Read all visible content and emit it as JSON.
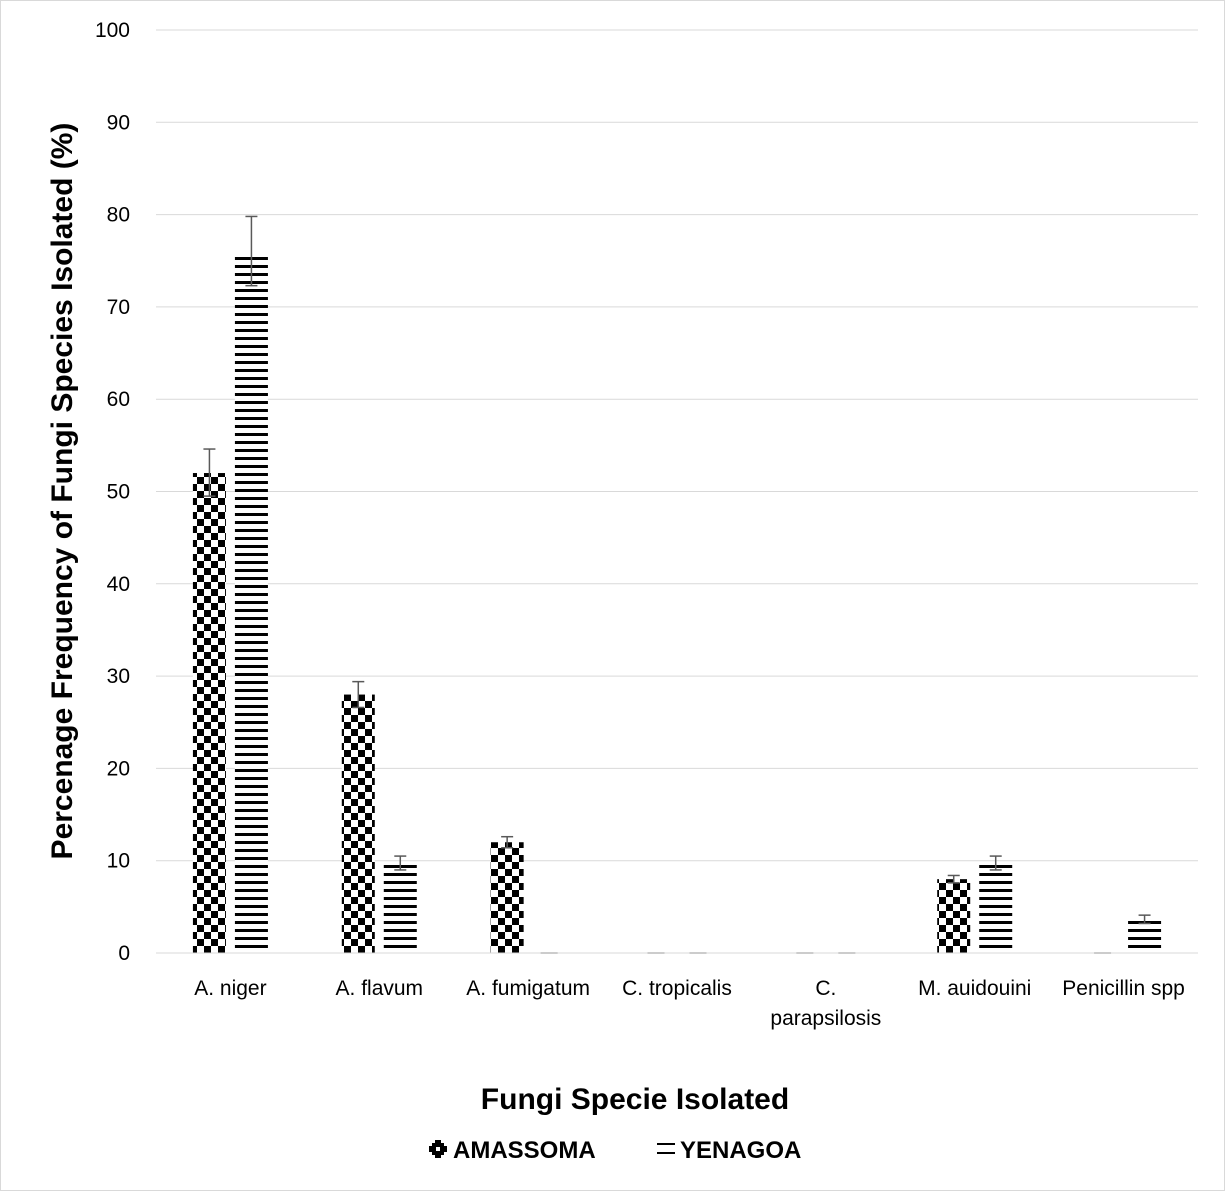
{
  "chart_data": {
    "type": "bar",
    "title": "",
    "xlabel": "Fungi Specie Isolated",
    "ylabel": "Percenage Frequency of Fungi Species Isolated (%)",
    "ylim": [
      0,
      100
    ],
    "yticks": [
      "0",
      "10",
      "20",
      "30",
      "40",
      "50",
      "60",
      "70",
      "80",
      "90",
      "100"
    ],
    "grid": "horizontal",
    "legend_position": "bottom",
    "categories": [
      [
        "A. niger"
      ],
      [
        "A. flavum"
      ],
      [
        "A. fumigatum"
      ],
      [
        "C. tropicalis"
      ],
      [
        "C.",
        "parapsilosis"
      ],
      [
        "M. auidouini"
      ],
      [
        "Penicillin spp"
      ]
    ],
    "series": [
      {
        "name": "AMASSOMA",
        "pattern": "checkerboard",
        "color": "#000000",
        "values": [
          52,
          28,
          12,
          0,
          0,
          8,
          0
        ],
        "error_high": [
          54.6,
          29.4,
          12.6,
          0,
          0,
          8.4,
          0
        ],
        "error_low": [
          49.5,
          26.6,
          11.4,
          0,
          0,
          7.6,
          0
        ]
      },
      {
        "name": "YENAGOA",
        "pattern": "horizontal-lines",
        "color": "#000000",
        "values": [
          75.5,
          9.7,
          0,
          0,
          0,
          9.7,
          3.6
        ],
        "error_high": [
          79.8,
          10.5,
          0,
          0,
          0,
          10.5,
          4.1
        ],
        "error_low": [
          72.3,
          9.0,
          0,
          0,
          0,
          9.0,
          3.2
        ]
      }
    ]
  }
}
